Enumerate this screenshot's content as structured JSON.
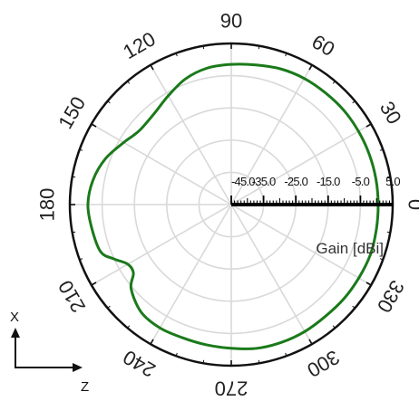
{
  "chart_data": {
    "type": "polar",
    "angular_axis": {
      "unit": "degrees",
      "zero_direction": "right",
      "direction": "counterclockwise",
      "tick_labels": [
        "0",
        "30",
        "60",
        "90",
        "120",
        "150",
        "180",
        "210",
        "240",
        "270",
        "300",
        "330"
      ],
      "tick_angles": [
        0,
        30,
        60,
        90,
        120,
        150,
        180,
        210,
        240,
        270,
        300,
        330
      ]
    },
    "radial_axis": {
      "label": "Gain [dBi]",
      "range": [
        -45,
        5
      ],
      "tick_labels": [
        "-45.0",
        "-35.0",
        "-25.0",
        "-15.0",
        "-5.0",
        "5.0"
      ],
      "tick_values": [
        -45,
        -35,
        -25,
        -15,
        -5,
        5
      ],
      "grid_rings": [
        -35,
        -25,
        -15,
        -5
      ]
    },
    "grid": true,
    "series": [
      {
        "color": "#1a7a1a",
        "angles": [
          0,
          10,
          20,
          30,
          40,
          50,
          60,
          70,
          80,
          90,
          100,
          110,
          120,
          130,
          140,
          145,
          150,
          160,
          170,
          180,
          190,
          200,
          205,
          210,
          215,
          220,
          230,
          240,
          250,
          260,
          270,
          280,
          290,
          300,
          310,
          320,
          330,
          340,
          350
        ],
        "gain": [
          0.5,
          0.5,
          0.5,
          0.5,
          0.5,
          0.3,
          0.2,
          -0.2,
          -1.0,
          -1.5,
          -2.0,
          -3.5,
          -6.0,
          -8.0,
          -8.5,
          -7.8,
          -6.5,
          -3.5,
          -1.5,
          -0.6,
          -1.2,
          -2.0,
          -5.0,
          -8.0,
          -8.0,
          -4.5,
          -1.5,
          -0.8,
          -1.0,
          -0.8,
          -0.4,
          0.3,
          0.5,
          0.5,
          0.3,
          0.5,
          0.6,
          0.8,
          0.6
        ]
      }
    ]
  },
  "triad": {
    "x_label": "X",
    "z_label": "Z"
  },
  "colors": {
    "trace": "#1a7a1a",
    "grid": "#d9d9d9",
    "frame": "#111111",
    "radial_axis": "#000000"
  }
}
